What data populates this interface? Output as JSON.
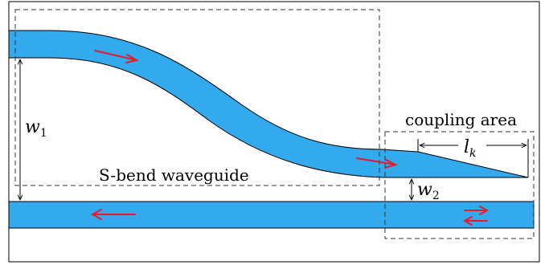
{
  "labels": {
    "sbend": "S-bend waveguide",
    "coupling": "coupling area",
    "w1_main": "w",
    "w1_sub": "1",
    "w2_main": "w",
    "w2_sub": "2",
    "lk_main": "l",
    "lk_sub": "k"
  },
  "colors": {
    "waveguide": "#33aaee",
    "arrow": "#e8192c",
    "outline": "#000000"
  }
}
